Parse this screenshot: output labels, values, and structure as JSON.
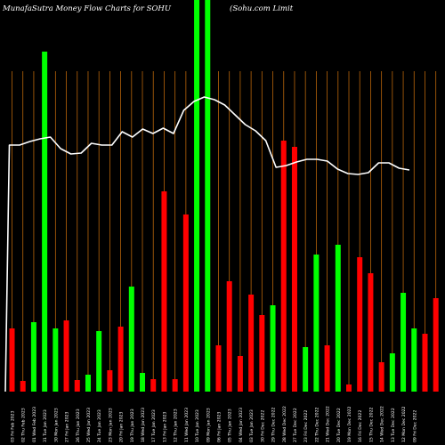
{
  "header": {
    "title": "MunafaSutra  Money Flow  Charts for SOHU",
    "company": "(Sohu.com Limit"
  },
  "chart_data": {
    "type": "bar",
    "title": "MunafaSutra  Money Flow  Charts for SOHU",
    "subtitle": "(Sohu.com Limit",
    "colors": {
      "up": "#00ff00",
      "down": "#ff0000",
      "grid": "#b8650a",
      "line": "#ffffff",
      "background": "#000000"
    },
    "ylim": [
      0,
      440
    ],
    "line_ylim": [
      0,
      440
    ],
    "categories": [
      "03 Fri Feb 2023",
      "02 Thu Feb 2023",
      "01 Wed Feb 2023",
      "31 Tue Jan 2023",
      "30 Mon Jan 2023",
      "27 Fri Jan 2023",
      "26 Thu Jan 2023",
      "25 Wed Jan 2023",
      "24 Tue Jan 2023",
      "23 Mon Jan 2023",
      "20 Fri Jan 2023",
      "19 Thu Jan 2023",
      "18 Wed Jan 2023",
      "17 Tue Jan 2023",
      "13 Fri Jan 2023",
      "12 Thu Jan 2023",
      "11 Wed Jan 2023",
      "10 Tue Jan 2023",
      "09 Mon Jan 2023",
      "06 Fri Jan 2023",
      "05 Thu Jan 2023",
      "04 Wed Jan 2023",
      "03 Tue Jan 2023",
      "30 Fri Dec 2022",
      "29 Thu Dec 2022",
      "28 Wed Dec 2022",
      "27 Tue Dec 2022",
      "23 Fri Dec 2022",
      "22 Thu Dec 2022",
      "21 Wed Dec 2022",
      "20 Tue Dec 2022",
      "19 Mon Dec 2022",
      "16 Fri Dec 2022",
      "15 Thu Dec 2022",
      "14 Wed Dec 2022",
      "13 Tue Dec 2022",
      "12 Mon Dec 2022",
      "09 Fri Dec 2022"
    ],
    "x_tick_labels": [
      "03 Fri Feb 2023",
      "02 Thu Feb 2023",
      "01 Wed Feb 2023",
      "31 Tue Jan 2023",
      "30 Mon Jan 2023",
      "27 Fri Jan 2023",
      "26 Thu Jan 2023",
      "25 Wed Jan 2023",
      "24 Tue Jan 2023",
      "23 Mon Jan 2023",
      "20 Fri Jan 2023",
      "19 Thu Jan 2023",
      "18 Wed Jan 2023",
      "17 Tue Jan 2023",
      "13 Fri Jan 2023",
      "12 Thu Jan 2023",
      "11 Wed Jan 2023",
      "10 Tue Jan 2023",
      "09 Mon Jan 2023",
      "06 Fri Jan 2023",
      "05 Thu Jan 2023",
      "04 Wed Jan 2023",
      "03 Tue Jan 2023",
      "30 Fri Dec 2022",
      "29 Thu Dec 2022",
      "28 Wed Dec 2022",
      "27 Tue Dec 2022",
      "23 Fri Dec 2022",
      "22 Thu Dec 2022",
      "21 Wed Dec 2022",
      "20 Tue Dec 2022",
      "19 Mon Dec 2022",
      "16 Fri Dec 2022",
      "15 Thu Dec 2022",
      "14 Wed Dec 2022",
      "13 Tue Dec 2022",
      "12 Mon Dec 2022",
      "09 Fri Dec 2022"
    ],
    "bars": [
      {
        "value": 71,
        "dir": "down"
      },
      {
        "value": 12,
        "dir": "down"
      },
      {
        "value": 78,
        "dir": "up"
      },
      {
        "value": 382,
        "dir": "up"
      },
      {
        "value": 71,
        "dir": "up"
      },
      {
        "value": 80,
        "dir": "down"
      },
      {
        "value": 13,
        "dir": "down"
      },
      {
        "value": 19,
        "dir": "up"
      },
      {
        "value": 68,
        "dir": "up"
      },
      {
        "value": 24,
        "dir": "down"
      },
      {
        "value": 73,
        "dir": "down"
      },
      {
        "value": 118,
        "dir": "up"
      },
      {
        "value": 21,
        "dir": "up"
      },
      {
        "value": 14,
        "dir": "down"
      },
      {
        "value": 225,
        "dir": "down"
      },
      {
        "value": 14,
        "dir": "down"
      },
      {
        "value": 199,
        "dir": "down"
      },
      {
        "value": 440,
        "dir": "up"
      },
      {
        "value": 440,
        "dir": "up"
      },
      {
        "value": 52,
        "dir": "down"
      },
      {
        "value": 124,
        "dir": "down"
      },
      {
        "value": 40,
        "dir": "down"
      },
      {
        "value": 109,
        "dir": "down"
      },
      {
        "value": 86,
        "dir": "down"
      },
      {
        "value": 97,
        "dir": "up"
      },
      {
        "value": 282,
        "dir": "down"
      },
      {
        "value": 275,
        "dir": "down"
      },
      {
        "value": 50,
        "dir": "up"
      },
      {
        "value": 154,
        "dir": "up"
      },
      {
        "value": 52,
        "dir": "down"
      },
      {
        "value": 165,
        "dir": "up"
      },
      {
        "value": 8,
        "dir": "down"
      },
      {
        "value": 151,
        "dir": "down"
      },
      {
        "value": 133,
        "dir": "down"
      },
      {
        "value": 33,
        "dir": "down"
      },
      {
        "value": 43,
        "dir": "up"
      },
      {
        "value": 111,
        "dir": "up"
      },
      {
        "value": 71,
        "dir": "up"
      }
    ],
    "extra_bars": [
      {
        "value": 65,
        "dir": "down"
      },
      {
        "value": 105,
        "dir": "down"
      }
    ],
    "line": [
      0,
      277,
      277,
      281,
      284,
      286,
      273,
      267,
      268,
      279,
      277,
      277,
      292,
      286,
      295,
      290,
      296,
      290,
      316,
      326,
      331,
      328,
      322,
      311,
      300,
      293,
      282,
      252,
      254,
      258,
      261,
      261,
      259,
      250,
      245,
      244,
      246,
      257,
      257,
      251,
      249
    ],
    "xlabel": "",
    "ylabel": ""
  }
}
